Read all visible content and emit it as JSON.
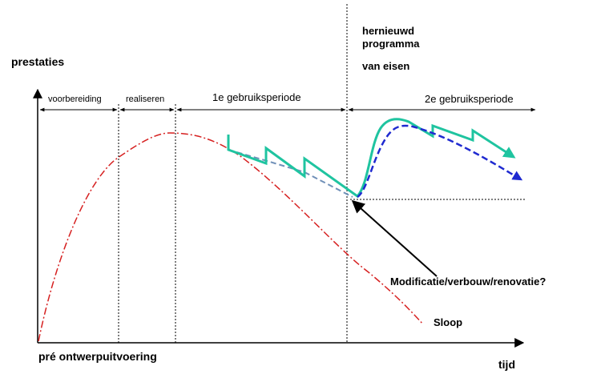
{
  "axes": {
    "y_label": "prestaties",
    "x_label": "tijd",
    "origin_label": "pré ontwerpuitvoering"
  },
  "phases": [
    {
      "label": "voorbereiding"
    },
    {
      "label": "realiseren"
    },
    {
      "label": "1e gebruiksperiode"
    },
    {
      "label": "2e gebruiksperiode"
    }
  ],
  "annotations": {
    "new_requirements": [
      "hernieuwd",
      "programma",
      "van eisen"
    ],
    "modification": "Modificatie/verbouw/renovatie?",
    "demolition": "Sloop"
  },
  "colors": {
    "lifecycle_curve": "#d62020",
    "maintenance_line": "#1fc4a0",
    "trend_dashed_1": "#7090b8",
    "trend_dashed_2": "#1f2ad0",
    "axis": "#000000"
  }
}
